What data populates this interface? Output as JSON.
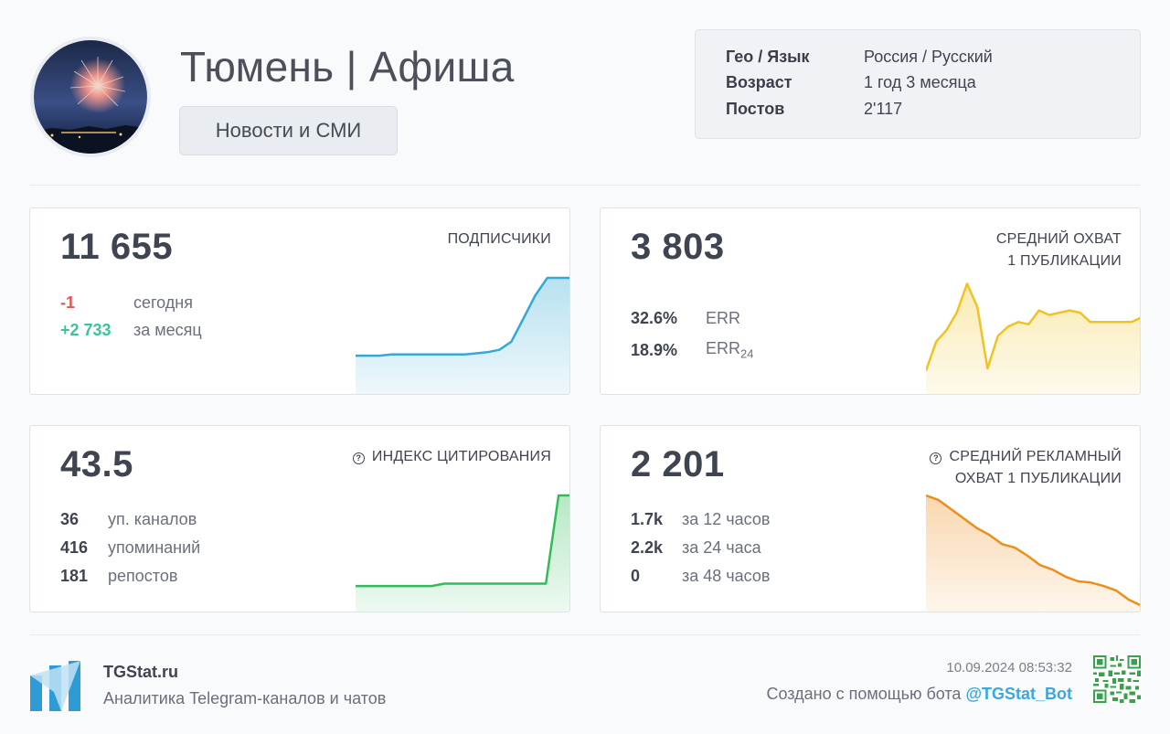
{
  "channel": {
    "title": "Тюмень | Афиша",
    "category": "Новости и СМИ",
    "info": [
      {
        "key": "Гео / Язык",
        "value": "Россия / Русский"
      },
      {
        "key": "Возраст",
        "value": "1 год 3 месяца"
      },
      {
        "key": "Постов",
        "value": "2'117"
      }
    ]
  },
  "cards": {
    "subscribers": {
      "value": "11 655",
      "label": "ПОДПИСЧИКИ",
      "today_value": "-1",
      "today_label": "сегодня",
      "month_value": "+2 733",
      "month_label": "за месяц",
      "color": "#34a9d6",
      "series": [
        33,
        33,
        33,
        34,
        34,
        34,
        34,
        34,
        34,
        34,
        35,
        36,
        38,
        45,
        65,
        85,
        100,
        100,
        100
      ]
    },
    "reach": {
      "value": "3 803",
      "label_line1": "СРЕДНИЙ ОХВАТ",
      "label_line2": "1 ПУБЛИКАЦИИ",
      "err_value": "32.6%",
      "err_label": "ERR",
      "err24_value": "18.9%",
      "err24_label": "ERR",
      "err24_sub": "24",
      "color": "#f0c323",
      "series": [
        20,
        45,
        55,
        70,
        95,
        75,
        22,
        50,
        58,
        62,
        60,
        72,
        68,
        70,
        72,
        70,
        62,
        62,
        62,
        62,
        62,
        66
      ]
    },
    "citation": {
      "value": "43.5",
      "label": "ИНДЕКС ЦИТИРОВАНИЯ",
      "rows": [
        {
          "n": "36",
          "t": "уп. каналов"
        },
        {
          "n": "416",
          "t": "упоминаний"
        },
        {
          "n": "181",
          "t": "репостов"
        }
      ],
      "color": "#2fbd58",
      "series": [
        22,
        22,
        22,
        22,
        22,
        22,
        22,
        24,
        24,
        24,
        24,
        24,
        24,
        24,
        24,
        24,
        100,
        100
      ]
    },
    "ad_reach": {
      "value": "2 201",
      "label_line1": "СРЕДНИЙ РЕКЛАМНЫЙ",
      "label_line2": "ОХВАТ 1 ПУБЛИКАЦИИ",
      "rows": [
        {
          "n": "1.7k",
          "t": "за 12 часов"
        },
        {
          "n": "2.2k",
          "t": "за 24 часа"
        },
        {
          "n": "0",
          "t": "за 48 часов"
        }
      ],
      "color": "#ee8e1a",
      "series": [
        100,
        96,
        88,
        80,
        72,
        66,
        58,
        55,
        48,
        40,
        36,
        30,
        26,
        25,
        22,
        18,
        10,
        5
      ]
    }
  },
  "footer": {
    "brand": "TGStat.ru",
    "tagline": "Аналитика Telegram-каналов и чатов",
    "timestamp": "10.09.2024 08:53:32",
    "credit_prefix": "Создано с помощью бота ",
    "bot": "@TGStat_Bot"
  }
}
